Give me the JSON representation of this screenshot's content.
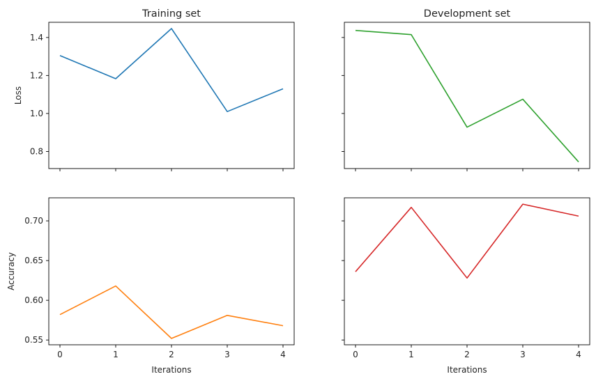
{
  "chart_data": [
    {
      "type": "line",
      "panel": "top-left",
      "title": "Training set",
      "xlabel": "",
      "ylabel": "Loss",
      "x": [
        0,
        1,
        2,
        3,
        4
      ],
      "xticks": [
        0,
        1,
        2,
        3,
        4
      ],
      "xlim": [
        -0.2,
        4.2
      ],
      "yticks": [
        0.8,
        1.0,
        1.2,
        1.4
      ],
      "ytick_labels": [
        "0.8",
        "1.0",
        "1.2",
        "1.4"
      ],
      "ylim": [
        0.71,
        1.48
      ],
      "show_xtick_labels": false,
      "show_ytick_labels": true,
      "series": [
        {
          "values": [
            1.305,
            1.183,
            1.447,
            1.01,
            1.13
          ],
          "color": "#1f77b4"
        }
      ]
    },
    {
      "type": "line",
      "panel": "top-right",
      "title": "Development set",
      "xlabel": "",
      "ylabel": "",
      "x": [
        0,
        1,
        2,
        3,
        4
      ],
      "xticks": [
        0,
        1,
        2,
        3,
        4
      ],
      "xlim": [
        -0.2,
        4.2
      ],
      "yticks": [
        0.8,
        1.0,
        1.2,
        1.4
      ],
      "ytick_labels": [
        "0.8",
        "1.0",
        "1.2",
        "1.4"
      ],
      "ylim": [
        0.71,
        1.48
      ],
      "show_xtick_labels": false,
      "show_ytick_labels": false,
      "series": [
        {
          "values": [
            1.437,
            1.415,
            0.928,
            1.075,
            0.745
          ],
          "color": "#2ca02c"
        }
      ]
    },
    {
      "type": "line",
      "panel": "bottom-left",
      "title": "",
      "xlabel": "Iterations",
      "ylabel": "Accuracy",
      "x": [
        0,
        1,
        2,
        3,
        4
      ],
      "xticks": [
        0,
        1,
        2,
        3,
        4
      ],
      "xtick_labels": [
        "0",
        "1",
        "2",
        "3",
        "4"
      ],
      "xlim": [
        -0.2,
        4.2
      ],
      "yticks": [
        0.55,
        0.6,
        0.65,
        0.7
      ],
      "ytick_labels": [
        "0.55",
        "0.60",
        "0.65",
        "0.70"
      ],
      "ylim": [
        0.544,
        0.729
      ],
      "show_xtick_labels": true,
      "show_ytick_labels": true,
      "series": [
        {
          "values": [
            0.582,
            0.618,
            0.552,
            0.581,
            0.568
          ],
          "color": "#ff7f0e"
        }
      ]
    },
    {
      "type": "line",
      "panel": "bottom-right",
      "title": "",
      "xlabel": "Iterations",
      "ylabel": "",
      "x": [
        0,
        1,
        2,
        3,
        4
      ],
      "xticks": [
        0,
        1,
        2,
        3,
        4
      ],
      "xtick_labels": [
        "0",
        "1",
        "2",
        "3",
        "4"
      ],
      "xlim": [
        -0.2,
        4.2
      ],
      "yticks": [
        0.55,
        0.6,
        0.65,
        0.7
      ],
      "ytick_labels": [
        "0.55",
        "0.60",
        "0.65",
        "0.70"
      ],
      "ylim": [
        0.544,
        0.729
      ],
      "show_xtick_labels": true,
      "show_ytick_labels": false,
      "series": [
        {
          "values": [
            0.636,
            0.717,
            0.628,
            0.721,
            0.706
          ],
          "color": "#d62728"
        }
      ]
    }
  ]
}
